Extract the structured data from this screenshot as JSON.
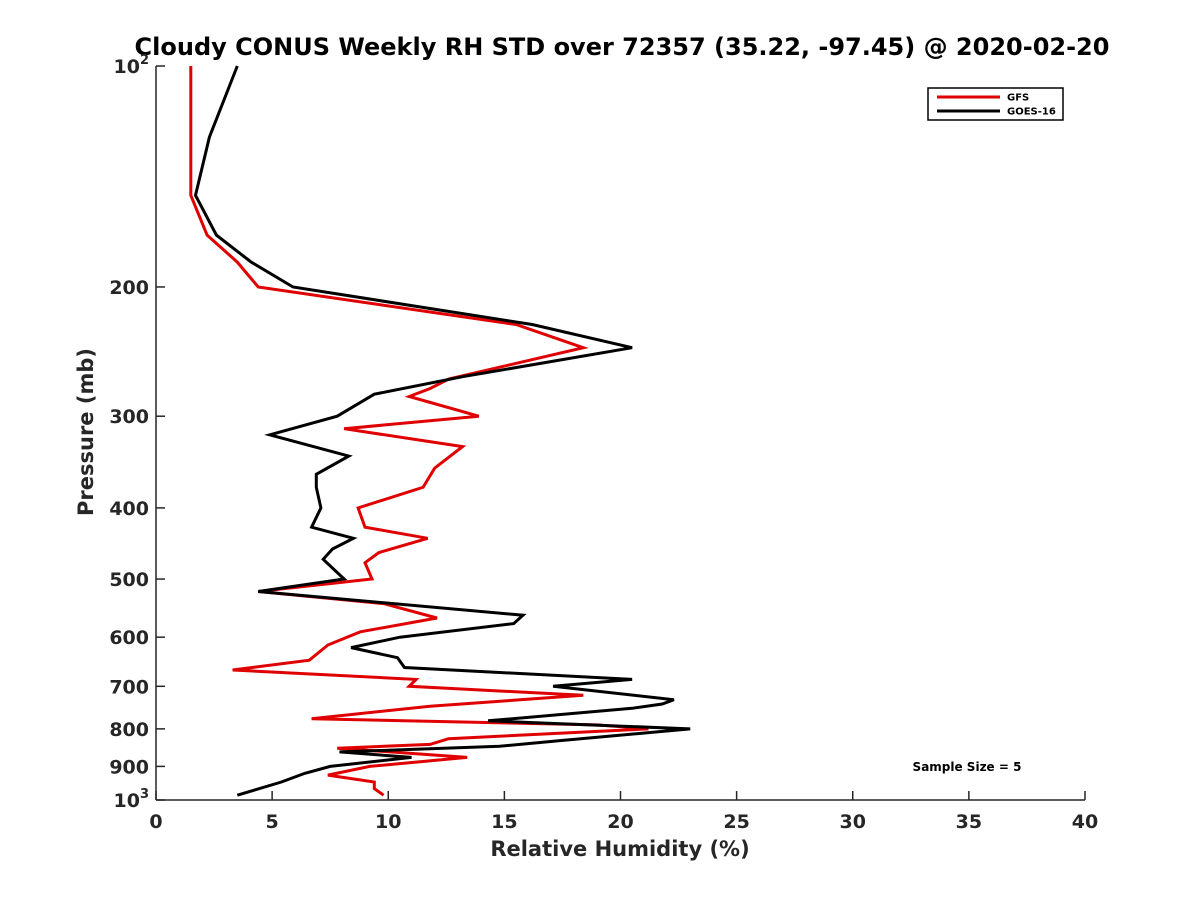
{
  "chart_data": {
    "type": "line",
    "title": "Cloudy CONUS Weekly RH STD over 72357 (35.22, -97.45) @ 2020-02-20",
    "xlabel": "Relative Humidity (%)",
    "ylabel": "Pressure (mb)",
    "xlim": [
      0,
      40
    ],
    "ylim": [
      100,
      1000
    ],
    "y_scale": "log",
    "y_reversed": true,
    "x_ticks": [
      {
        "value": 0,
        "label": "0"
      },
      {
        "value": 5,
        "label": "5"
      },
      {
        "value": 10,
        "label": "10"
      },
      {
        "value": 15,
        "label": "15"
      },
      {
        "value": 20,
        "label": "20"
      },
      {
        "value": 25,
        "label": "25"
      },
      {
        "value": 30,
        "label": "30"
      },
      {
        "value": 35,
        "label": "35"
      },
      {
        "value": 40,
        "label": "40"
      }
    ],
    "y_ticks": [
      {
        "value": 100,
        "label": "10",
        "sup": "2"
      },
      {
        "value": 200,
        "label": "200",
        "sup": ""
      },
      {
        "value": 300,
        "label": "300",
        "sup": ""
      },
      {
        "value": 400,
        "label": "400",
        "sup": ""
      },
      {
        "value": 500,
        "label": "500",
        "sup": ""
      },
      {
        "value": 600,
        "label": "600",
        "sup": ""
      },
      {
        "value": 700,
        "label": "700",
        "sup": ""
      },
      {
        "value": 800,
        "label": "800",
        "sup": ""
      },
      {
        "value": 900,
        "label": "900",
        "sup": ""
      },
      {
        "value": 1000,
        "label": "10",
        "sup": "3"
      }
    ],
    "grid": false,
    "legend_position": "top-right",
    "annotation": "Sample Size = 5",
    "series": [
      {
        "name": "GFS",
        "color": "#e00000",
        "points": [
          [
            1.5,
            100
          ],
          [
            1.5,
            125
          ],
          [
            1.5,
            150
          ],
          [
            2.2,
            170
          ],
          [
            3.5,
            185
          ],
          [
            4.4,
            200
          ],
          [
            15.5,
            225
          ],
          [
            18.4,
            242
          ],
          [
            12.6,
            267
          ],
          [
            11.8,
            275
          ],
          [
            10.9,
            282
          ],
          [
            13.9,
            300
          ],
          [
            8.1,
            312
          ],
          [
            13.2,
            330
          ],
          [
            12.0,
            353
          ],
          [
            11.5,
            375
          ],
          [
            8.7,
            400
          ],
          [
            9.0,
            425
          ],
          [
            11.7,
            440
          ],
          [
            9.6,
            460
          ],
          [
            9.0,
            475
          ],
          [
            9.3,
            500
          ],
          [
            4.4,
            520
          ],
          [
            9.8,
            540
          ],
          [
            12.1,
            565
          ],
          [
            8.8,
            590
          ],
          [
            7.4,
            615
          ],
          [
            6.6,
            645
          ],
          [
            3.3,
            665
          ],
          [
            11.2,
            685
          ],
          [
            10.9,
            700
          ],
          [
            18.4,
            720
          ],
          [
            11.8,
            745
          ],
          [
            6.7,
            775
          ],
          [
            19.0,
            790
          ],
          [
            21.2,
            800
          ],
          [
            12.6,
            825
          ],
          [
            11.8,
            840
          ],
          [
            7.8,
            850
          ],
          [
            13.4,
            875
          ],
          [
            9.2,
            900
          ],
          [
            7.4,
            925
          ],
          [
            9.4,
            945
          ],
          [
            9.4,
            965
          ],
          [
            9.8,
            985
          ]
        ]
      },
      {
        "name": "GOES-16",
        "color": "#000000",
        "points": [
          [
            3.5,
            100
          ],
          [
            2.3,
            125
          ],
          [
            1.7,
            150
          ],
          [
            2.6,
            170
          ],
          [
            4.1,
            185
          ],
          [
            5.9,
            200
          ],
          [
            16.2,
            225
          ],
          [
            20.5,
            242
          ],
          [
            13.2,
            265
          ],
          [
            9.4,
            280
          ],
          [
            7.8,
            300
          ],
          [
            4.9,
            318
          ],
          [
            8.3,
            340
          ],
          [
            6.9,
            360
          ],
          [
            6.9,
            375
          ],
          [
            7.1,
            400
          ],
          [
            6.7,
            425
          ],
          [
            8.5,
            440
          ],
          [
            7.6,
            455
          ],
          [
            7.2,
            470
          ],
          [
            8.1,
            500
          ],
          [
            4.4,
            520
          ],
          [
            15.8,
            560
          ],
          [
            15.4,
            575
          ],
          [
            10.5,
            600
          ],
          [
            8.4,
            620
          ],
          [
            10.4,
            640
          ],
          [
            10.7,
            660
          ],
          [
            20.5,
            685
          ],
          [
            17.1,
            700
          ],
          [
            22.3,
            730
          ],
          [
            21.8,
            740
          ],
          [
            20.5,
            750
          ],
          [
            14.3,
            780
          ],
          [
            23.0,
            800
          ],
          [
            17.4,
            830
          ],
          [
            14.8,
            845
          ],
          [
            7.9,
            860
          ],
          [
            11.0,
            875
          ],
          [
            7.5,
            900
          ],
          [
            6.4,
            920
          ],
          [
            5.4,
            945
          ],
          [
            3.5,
            985
          ]
        ]
      }
    ]
  }
}
